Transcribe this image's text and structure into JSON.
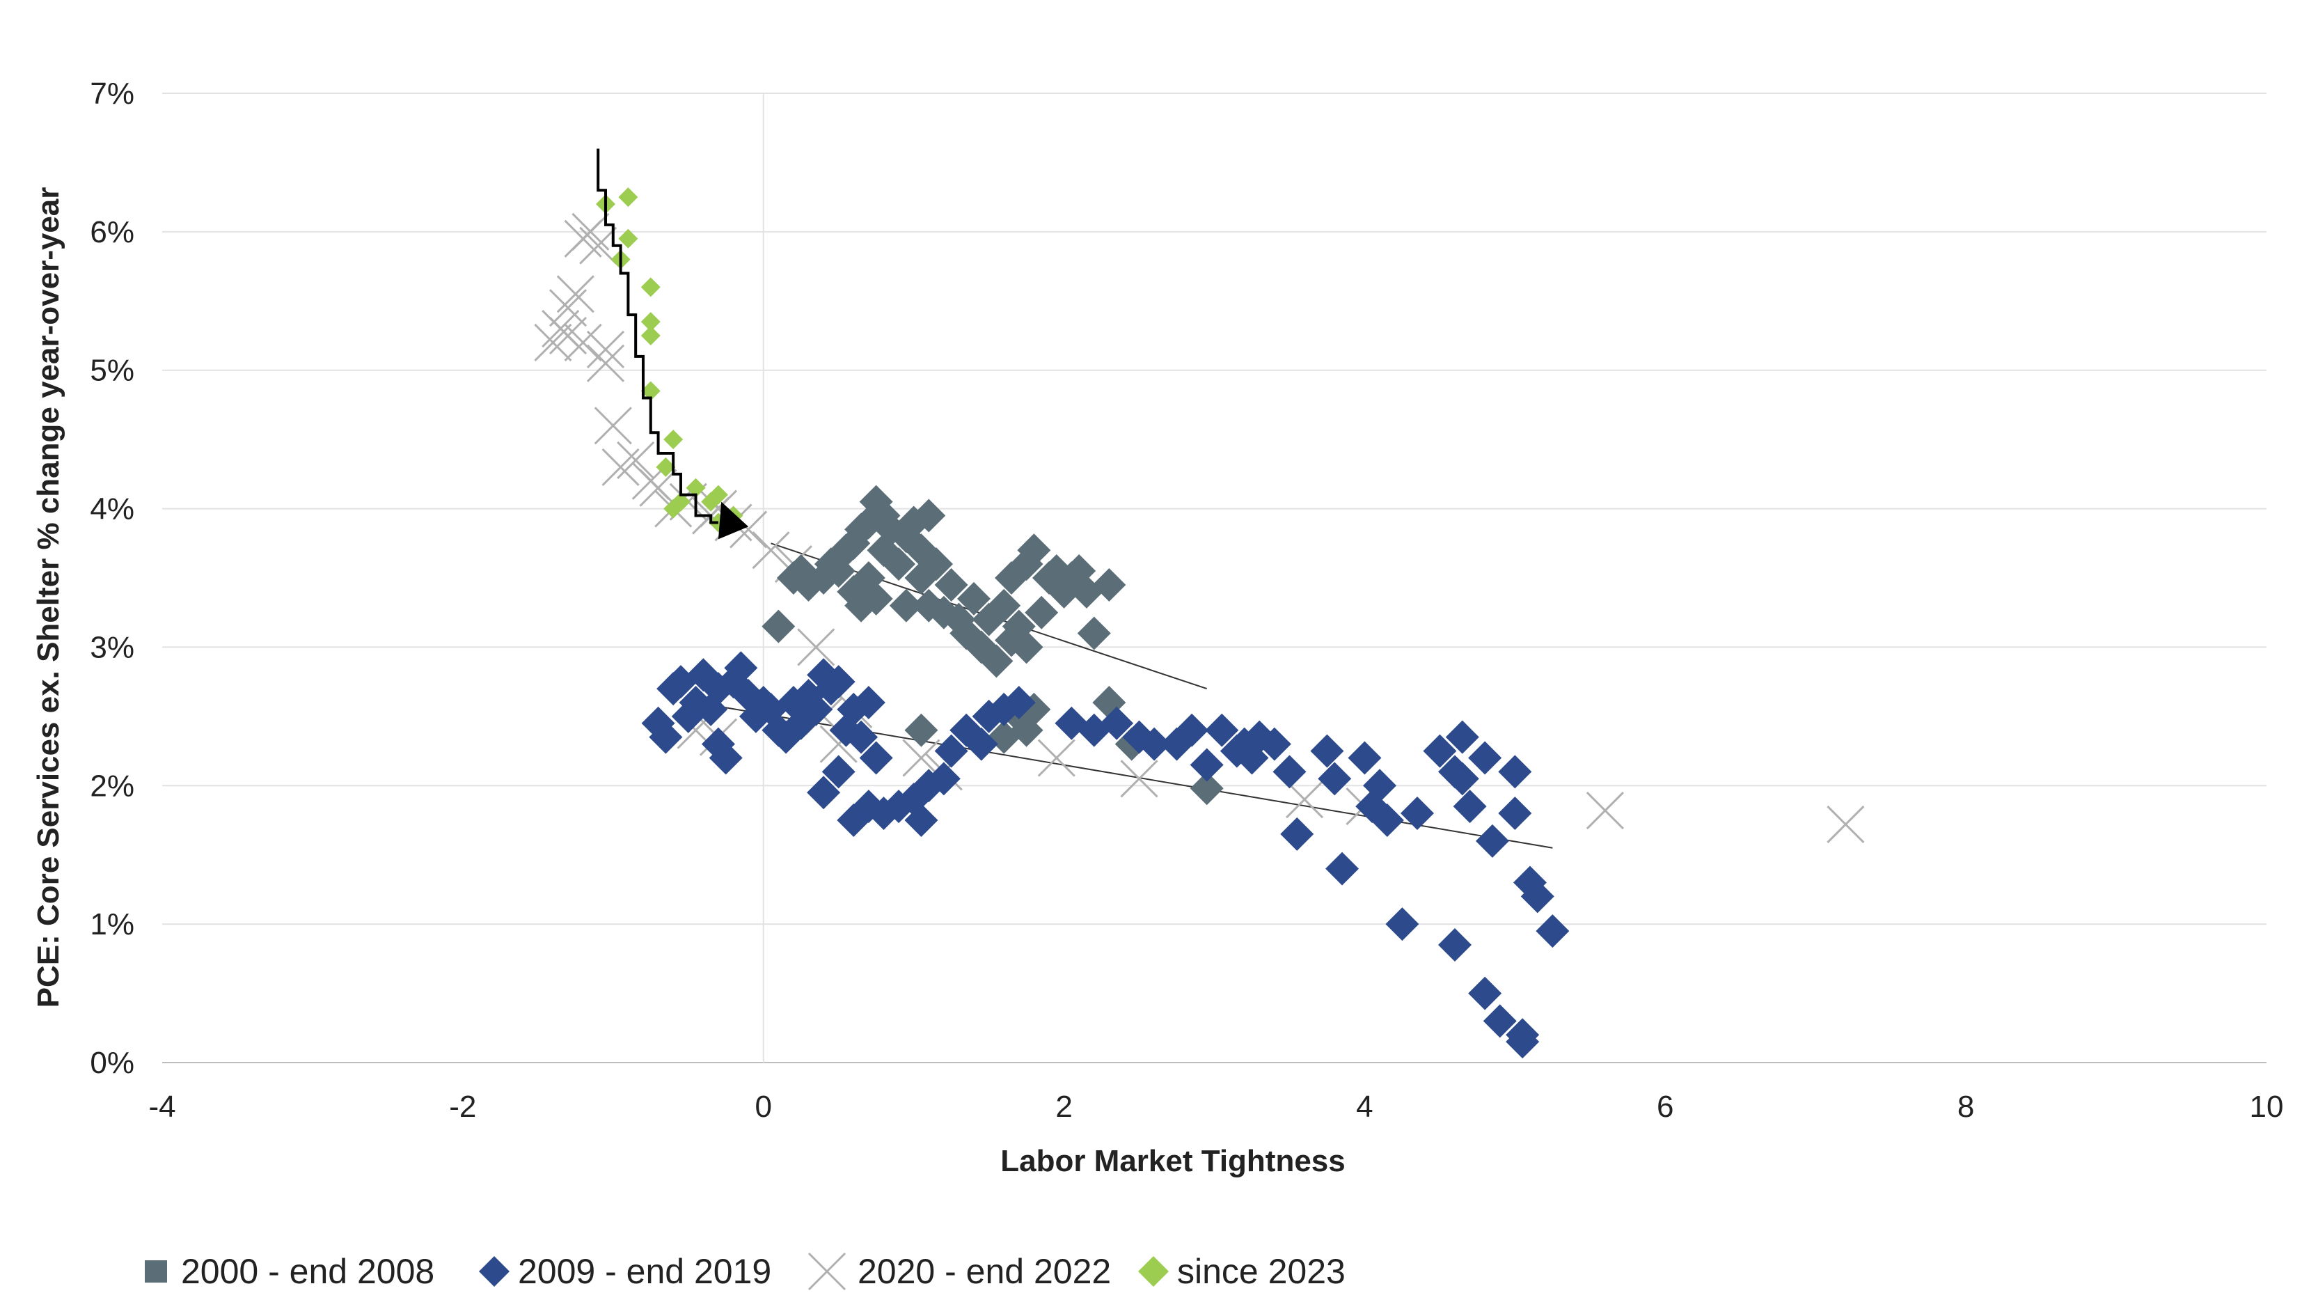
{
  "chart_data": {
    "type": "scatter",
    "xlabel": "Labor Market Tightness",
    "ylabel": "PCE: Core Services ex. Shelter % change year-over-year",
    "xlim": [
      -4,
      10
    ],
    "ylim": [
      0,
      7
    ],
    "xticks": [
      "-4",
      "-2",
      "0",
      "2",
      "4",
      "6",
      "8",
      "10"
    ],
    "yticks": [
      "0%",
      "1%",
      "2%",
      "3%",
      "4%",
      "5%",
      "6%",
      "7%"
    ],
    "grid": "horizontal",
    "legend_position": "bottom-left",
    "series": [
      {
        "name": "2000 - end 2008",
        "color": "#5b6e78",
        "marker": "diamond",
        "points": [
          [
            0.1,
            3.15
          ],
          [
            0.2,
            3.5
          ],
          [
            0.25,
            3.55
          ],
          [
            0.3,
            3.45
          ],
          [
            0.4,
            3.5
          ],
          [
            0.45,
            3.6
          ],
          [
            0.5,
            3.55
          ],
          [
            0.55,
            3.7
          ],
          [
            0.6,
            3.75
          ],
          [
            0.6,
            3.4
          ],
          [
            0.65,
            3.85
          ],
          [
            0.65,
            3.3
          ],
          [
            0.7,
            3.9
          ],
          [
            0.7,
            3.5
          ],
          [
            0.75,
            4.05
          ],
          [
            0.75,
            3.35
          ],
          [
            0.8,
            3.95
          ],
          [
            0.8,
            3.7
          ],
          [
            0.85,
            3.85
          ],
          [
            0.9,
            3.6
          ],
          [
            0.95,
            3.8
          ],
          [
            0.95,
            3.3
          ],
          [
            1.0,
            3.9
          ],
          [
            1.05,
            3.7
          ],
          [
            1.05,
            3.5
          ],
          [
            1.1,
            3.95
          ],
          [
            1.1,
            3.3
          ],
          [
            1.15,
            3.6
          ],
          [
            1.2,
            3.25
          ],
          [
            1.25,
            3.45
          ],
          [
            1.3,
            3.2
          ],
          [
            1.35,
            3.1
          ],
          [
            1.4,
            3.35
          ],
          [
            1.45,
            3.0
          ],
          [
            1.5,
            3.2
          ],
          [
            1.55,
            2.9
          ],
          [
            1.6,
            3.3
          ],
          [
            1.65,
            3.5
          ],
          [
            1.65,
            3.05
          ],
          [
            1.7,
            3.15
          ],
          [
            1.75,
            3.6
          ],
          [
            1.75,
            3.0
          ],
          [
            1.8,
            3.7
          ],
          [
            1.85,
            3.25
          ],
          [
            1.9,
            3.5
          ],
          [
            1.95,
            3.55
          ],
          [
            2.0,
            3.4
          ],
          [
            2.05,
            3.5
          ],
          [
            2.1,
            3.55
          ],
          [
            2.15,
            3.4
          ],
          [
            2.2,
            3.1
          ],
          [
            2.3,
            3.45
          ],
          [
            1.05,
            2.4
          ],
          [
            1.6,
            2.35
          ],
          [
            1.7,
            2.5
          ],
          [
            1.75,
            2.4
          ],
          [
            1.8,
            2.55
          ],
          [
            2.3,
            2.6
          ],
          [
            2.45,
            2.3
          ],
          [
            2.95,
            1.98
          ]
        ]
      },
      {
        "name": "2009 - end 2019",
        "color": "#2c4a8c",
        "marker": "diamond",
        "points": [
          [
            -0.7,
            2.45
          ],
          [
            -0.65,
            2.35
          ],
          [
            -0.6,
            2.7
          ],
          [
            -0.55,
            2.75
          ],
          [
            -0.5,
            2.5
          ],
          [
            -0.45,
            2.6
          ],
          [
            -0.4,
            2.8
          ],
          [
            -0.35,
            2.55
          ],
          [
            -0.3,
            2.7
          ],
          [
            -0.3,
            2.3
          ],
          [
            -0.25,
            2.2
          ],
          [
            -0.2,
            2.75
          ],
          [
            -0.15,
            2.85
          ],
          [
            -0.1,
            2.65
          ],
          [
            -0.05,
            2.5
          ],
          [
            0.0,
            2.6
          ],
          [
            0.05,
            2.55
          ],
          [
            0.1,
            2.4
          ],
          [
            0.15,
            2.35
          ],
          [
            0.2,
            2.6
          ],
          [
            0.25,
            2.45
          ],
          [
            0.3,
            2.65
          ],
          [
            0.35,
            2.55
          ],
          [
            0.4,
            2.8
          ],
          [
            0.45,
            2.7
          ],
          [
            0.5,
            2.75
          ],
          [
            0.55,
            2.4
          ],
          [
            0.6,
            2.55
          ],
          [
            0.65,
            2.35
          ],
          [
            0.7,
            2.6
          ],
          [
            0.4,
            1.95
          ],
          [
            0.5,
            2.1
          ],
          [
            0.6,
            1.75
          ],
          [
            0.7,
            1.85
          ],
          [
            0.75,
            2.2
          ],
          [
            0.8,
            1.8
          ],
          [
            0.9,
            1.85
          ],
          [
            1.0,
            1.9
          ],
          [
            1.05,
            1.75
          ],
          [
            1.1,
            2.0
          ],
          [
            1.2,
            2.05
          ],
          [
            1.25,
            2.25
          ],
          [
            1.35,
            2.4
          ],
          [
            1.45,
            2.3
          ],
          [
            1.5,
            2.5
          ],
          [
            1.6,
            2.55
          ],
          [
            1.7,
            2.6
          ],
          [
            2.05,
            2.45
          ],
          [
            2.2,
            2.4
          ],
          [
            2.35,
            2.45
          ],
          [
            2.5,
            2.35
          ],
          [
            2.6,
            2.3
          ],
          [
            2.75,
            2.3
          ],
          [
            2.85,
            2.4
          ],
          [
            2.95,
            2.15
          ],
          [
            3.05,
            2.4
          ],
          [
            3.15,
            2.25
          ],
          [
            3.2,
            2.3
          ],
          [
            3.25,
            2.2
          ],
          [
            3.3,
            2.35
          ],
          [
            3.4,
            2.3
          ],
          [
            3.5,
            2.1
          ],
          [
            3.55,
            1.65
          ],
          [
            3.75,
            2.25
          ],
          [
            3.8,
            2.05
          ],
          [
            3.85,
            1.4
          ],
          [
            4.0,
            2.2
          ],
          [
            4.05,
            1.85
          ],
          [
            4.1,
            2.0
          ],
          [
            4.15,
            1.75
          ],
          [
            4.25,
            1.0
          ],
          [
            4.35,
            1.8
          ],
          [
            4.5,
            2.25
          ],
          [
            4.6,
            2.1
          ],
          [
            4.65,
            2.35
          ],
          [
            4.65,
            2.05
          ],
          [
            4.7,
            1.85
          ],
          [
            4.8,
            2.2
          ],
          [
            4.6,
            0.85
          ],
          [
            4.8,
            0.5
          ],
          [
            4.9,
            0.3
          ],
          [
            5.0,
            2.1
          ],
          [
            5.0,
            1.8
          ],
          [
            5.05,
            0.2
          ],
          [
            5.1,
            1.3
          ],
          [
            5.15,
            1.2
          ],
          [
            5.25,
            0.95
          ],
          [
            5.05,
            0.15
          ],
          [
            4.85,
            1.6
          ]
        ]
      },
      {
        "name": "2020 - end 2022",
        "color": "#b0b0b0",
        "marker": "x",
        "points": [
          [
            -1.4,
            5.2
          ],
          [
            -1.35,
            5.3
          ],
          [
            -1.3,
            5.25
          ],
          [
            -1.3,
            5.45
          ],
          [
            -1.25,
            5.55
          ],
          [
            -1.2,
            5.2
          ],
          [
            -1.2,
            5.95
          ],
          [
            -1.15,
            6.0
          ],
          [
            -1.1,
            5.9
          ],
          [
            -1.05,
            5.15
          ],
          [
            -1.05,
            5.05
          ],
          [
            -1.0,
            4.6
          ],
          [
            -0.95,
            4.3
          ],
          [
            -0.85,
            4.35
          ],
          [
            -0.75,
            4.2
          ],
          [
            -0.7,
            4.15
          ],
          [
            -0.6,
            4.0
          ],
          [
            -0.5,
            4.05
          ],
          [
            -0.35,
            3.95
          ],
          [
            -0.3,
            4.0
          ],
          [
            -0.2,
            3.9
          ],
          [
            -0.1,
            3.85
          ],
          [
            0.05,
            3.7
          ],
          [
            0.2,
            3.6
          ],
          [
            0.35,
            3.0
          ],
          [
            0.4,
            2.5
          ],
          [
            0.5,
            2.3
          ],
          [
            0.6,
            2.55
          ],
          [
            1.05,
            2.2
          ],
          [
            1.2,
            2.1
          ],
          [
            1.95,
            2.2
          ],
          [
            2.5,
            2.05
          ],
          [
            -0.3,
            2.35
          ],
          [
            -0.45,
            2.4
          ],
          [
            5.6,
            1.82
          ],
          [
            7.2,
            1.72
          ],
          [
            3.6,
            1.9
          ],
          [
            4.0,
            1.85
          ]
        ]
      },
      {
        "name": "since 2023",
        "color": "#9ccc50",
        "marker": "diamond",
        "points": [
          [
            -1.05,
            6.2
          ],
          [
            -0.9,
            6.25
          ],
          [
            -0.9,
            5.95
          ],
          [
            -0.95,
            5.8
          ],
          [
            -0.75,
            5.6
          ],
          [
            -0.75,
            5.35
          ],
          [
            -0.75,
            5.25
          ],
          [
            -0.75,
            4.85
          ],
          [
            -0.65,
            4.3
          ],
          [
            -0.6,
            4.5
          ],
          [
            -0.6,
            4.0
          ],
          [
            -0.55,
            4.05
          ],
          [
            -0.45,
            4.15
          ],
          [
            -0.35,
            4.05
          ],
          [
            -0.3,
            3.9
          ],
          [
            -0.25,
            3.9
          ],
          [
            -0.2,
            3.95
          ],
          [
            -0.3,
            4.1
          ]
        ]
      }
    ],
    "trend_lines": [
      {
        "x1": 0.05,
        "y1": 3.75,
        "x2": 2.95,
        "y2": 2.7
      },
      {
        "x1": -0.45,
        "y1": 2.6,
        "x2": 5.25,
        "y2": 1.55
      }
    ],
    "path_arrow": {
      "points": [
        [
          -1.1,
          6.6
        ],
        [
          -1.05,
          6.3
        ],
        [
          -1.0,
          6.05
        ],
        [
          -0.95,
          5.9
        ],
        [
          -0.9,
          5.7
        ],
        [
          -0.85,
          5.4
        ],
        [
          -0.8,
          5.1
        ],
        [
          -0.75,
          4.8
        ],
        [
          -0.7,
          4.55
        ],
        [
          -0.6,
          4.4
        ],
        [
          -0.55,
          4.25
        ],
        [
          -0.45,
          4.1
        ],
        [
          -0.35,
          3.95
        ],
        [
          -0.3,
          3.9
        ]
      ],
      "head": [
        [
          -0.1,
          3.87
        ],
        [
          -0.28,
          4.05
        ],
        [
          -0.3,
          3.78
        ]
      ],
      "color": "#000000"
    }
  }
}
